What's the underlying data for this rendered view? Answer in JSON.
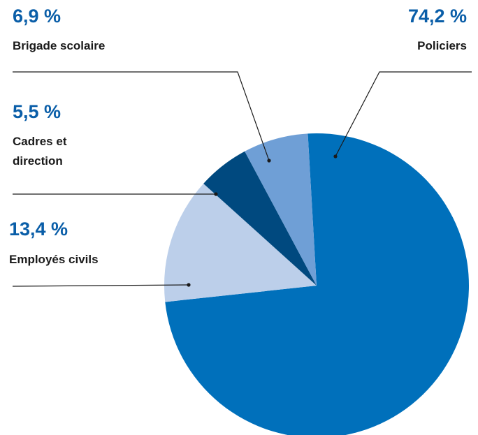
{
  "chart_data": {
    "type": "pie",
    "slices": [
      {
        "label": "Policiers",
        "value": 74.2,
        "value_text": "74,2 %",
        "color": "#0070bb"
      },
      {
        "label": "Employés civils",
        "value": 13.4,
        "value_text": "13,4 %",
        "color": "#bccfea"
      },
      {
        "label_lines": [
          "Cadres et",
          "direction"
        ],
        "value": 5.5,
        "value_text": "5,5 %",
        "color": "#00497f"
      },
      {
        "label": "Brigade scolaire",
        "value": 6.9,
        "value_text": "6,9 %",
        "color": "#6f9fd6"
      }
    ],
    "value_color": "#0a5ea8"
  }
}
